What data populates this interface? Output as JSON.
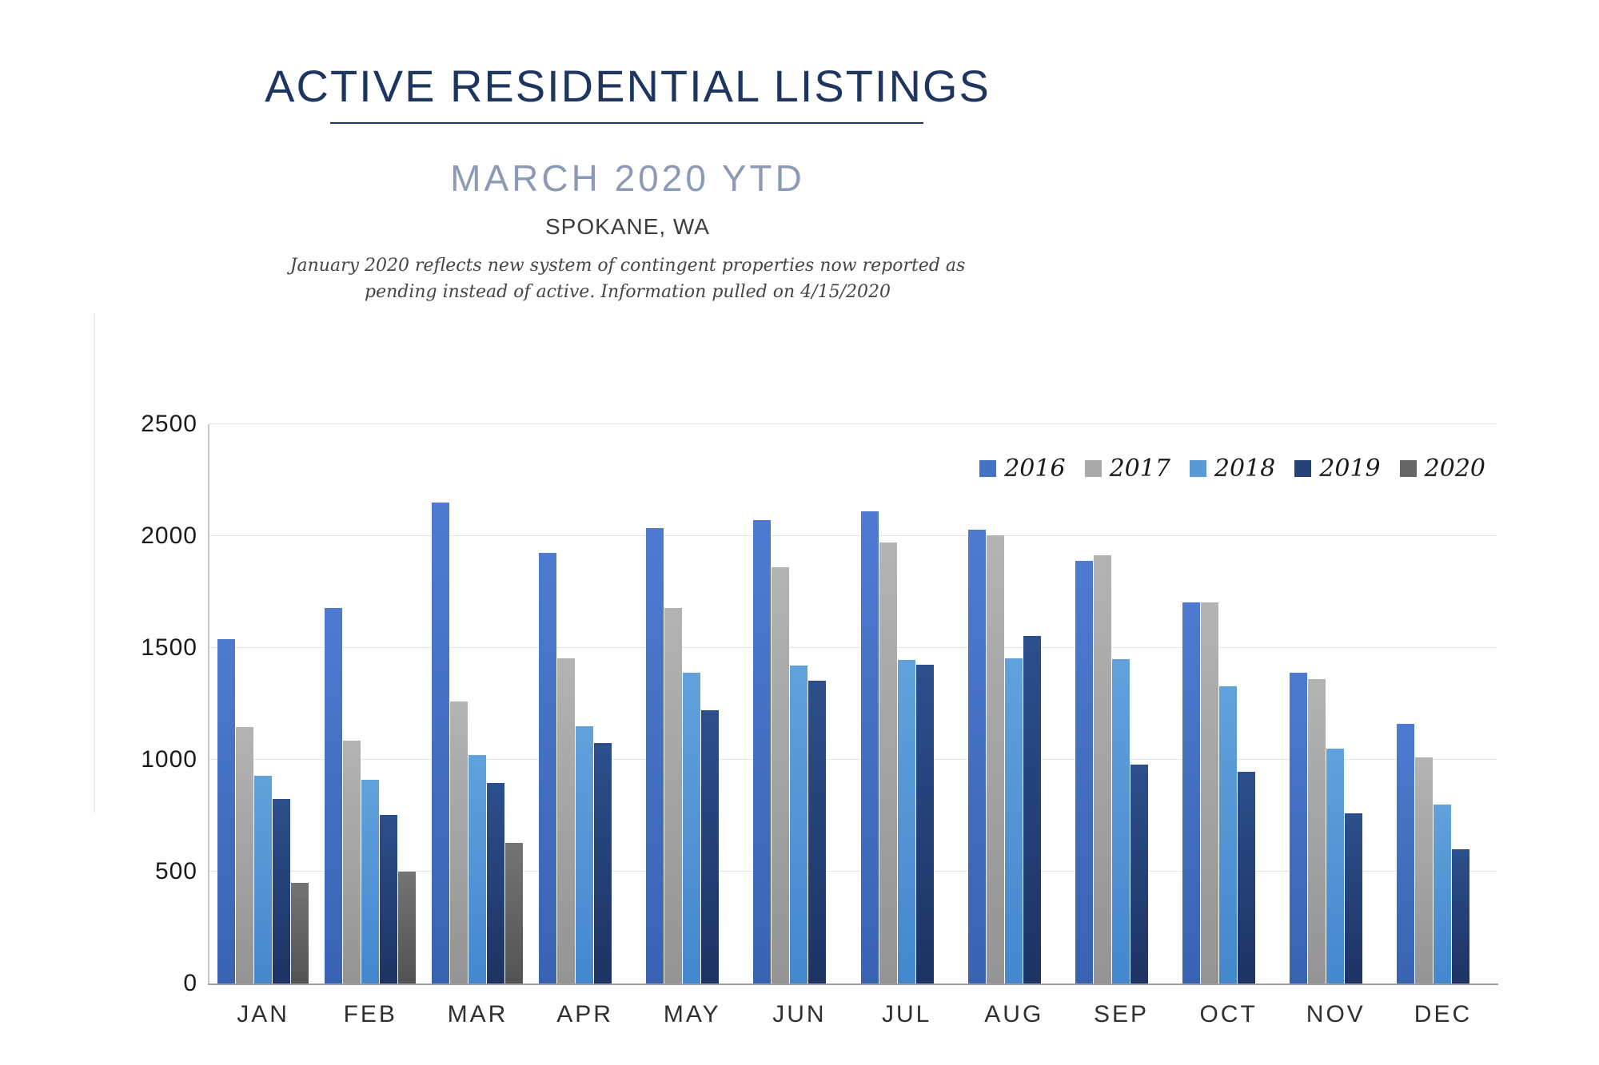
{
  "header": {
    "title": "ACTIVE RESIDENTIAL LISTINGS",
    "subtitle": "MARCH 2020 YTD",
    "location": "SPOKANE, WA",
    "note_line1": "January 2020 reflects new system of contingent properties now reported as",
    "note_line2": "pending instead of active.  Information pulled on 4/15/2020"
  },
  "colors": {
    "title_navy": "#1E3560",
    "subtitle_blue_gray": "#8C9BB5",
    "gridline": "#E5E5E5",
    "axis": "#A0A0A0"
  },
  "chart_data": {
    "type": "bar",
    "title": "Active Residential Listings by month, 2016-2020",
    "categories": [
      "JAN",
      "FEB",
      "MAR",
      "APR",
      "MAY",
      "JUN",
      "JUL",
      "AUG",
      "SEP",
      "OCT",
      "NOV",
      "DEC"
    ],
    "series": [
      {
        "name": "2016",
        "color": "#4472C4",
        "gradient": [
          "#4E7BD1",
          "#3963B2"
        ],
        "values": [
          1540,
          1680,
          2150,
          1925,
          2035,
          2070,
          2110,
          2030,
          1890,
          1705,
          1390,
          1160
        ]
      },
      {
        "name": "2017",
        "color": "#A9A9A9",
        "gradient": [
          "#B3B3B3",
          "#949494"
        ],
        "values": [
          1145,
          1085,
          1260,
          1455,
          1680,
          1860,
          1970,
          2005,
          1915,
          1705,
          1360,
          1010
        ]
      },
      {
        "name": "2018",
        "color": "#5B9BD5",
        "gradient": [
          "#61A1DC",
          "#4487CD"
        ],
        "values": [
          930,
          910,
          1020,
          1150,
          1390,
          1420,
          1445,
          1455,
          1450,
          1330,
          1050,
          800
        ]
      },
      {
        "name": "2019",
        "color": "#264478",
        "gradient": [
          "#2C4F8C",
          "#1D3363"
        ],
        "values": [
          825,
          755,
          895,
          1075,
          1220,
          1355,
          1425,
          1555,
          980,
          945,
          760,
          600
        ]
      },
      {
        "name": "2020",
        "color": "#666666",
        "gradient": [
          "#747474",
          "#535353"
        ],
        "values": [
          450,
          500,
          630,
          null,
          null,
          null,
          null,
          null,
          null,
          null,
          null,
          null
        ]
      }
    ],
    "xlabel": "",
    "ylabel": "",
    "ylim": [
      0,
      2500
    ],
    "yticks": [
      0,
      500,
      1000,
      1500,
      2000,
      2500
    ],
    "grid": true,
    "legend_position": "top-right"
  }
}
